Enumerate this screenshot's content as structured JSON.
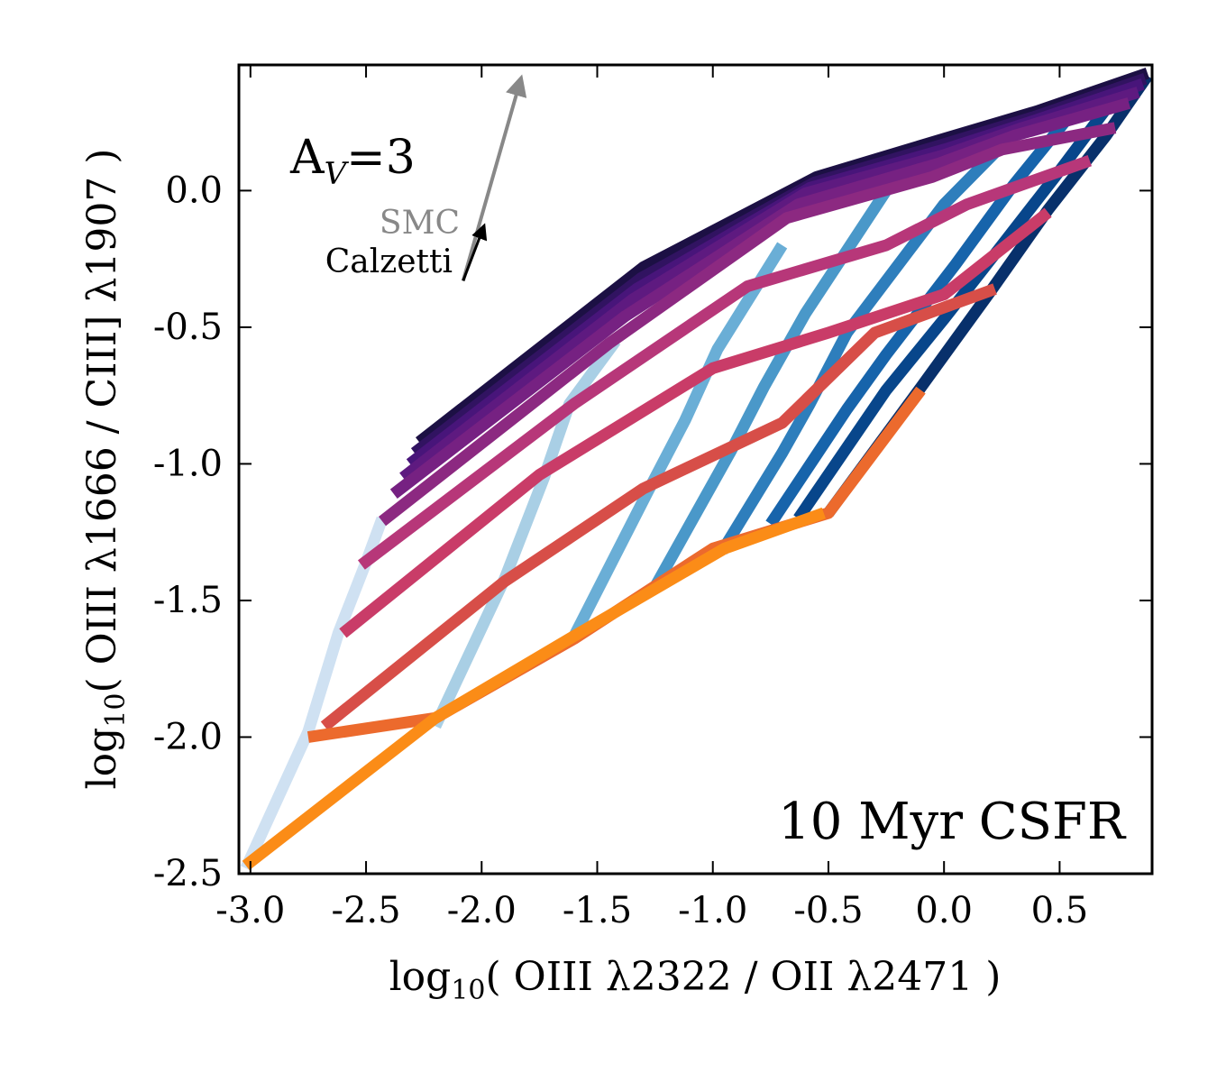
{
  "chart_data": {
    "type": "line",
    "title": "",
    "xlabel": {
      "prefix": "log",
      "sub": "10",
      "body": "( OIII λ2322 / OII λ2471 )"
    },
    "ylabel": {
      "prefix": "log",
      "sub": "10",
      "body": "( OIII λ1666 / CIII] λ1907 )"
    },
    "xlim": [
      -3.05,
      0.9
    ],
    "ylim": [
      -2.5,
      0.46
    ],
    "xticks": [
      -3.0,
      -2.5,
      -2.0,
      -1.5,
      -1.0,
      -0.5,
      0.0,
      0.5
    ],
    "yticks": [
      -2.5,
      -2.0,
      -1.5,
      -1.0,
      -0.5,
      0.0
    ],
    "xtick_labels": [
      "-3.0",
      "-2.5",
      "-2.0",
      "-1.5",
      "-1.0",
      "-0.5",
      "0.0",
      "0.5"
    ],
    "ytick_labels": [
      "-2.5",
      "-2.0",
      "-1.5",
      "-1.0",
      "-0.5",
      "0.0"
    ],
    "grid": false,
    "annotations": {
      "av_label": "A",
      "av_sub": "V",
      "av_value": "=3",
      "panel_label": "10 Myr CSFR",
      "smc_label": "SMC",
      "calzetti_label": "Calzetti"
    },
    "extinction_vectors": [
      {
        "name": "SMC",
        "color": "#888888",
        "x0": -2.08,
        "y0": -0.33,
        "x1": -1.83,
        "y1": 0.41
      },
      {
        "name": "Calzetti",
        "color": "#000000",
        "x0": -2.08,
        "y0": -0.33,
        "x1": -1.99,
        "y1": -0.13
      }
    ],
    "grid_series_blue": [
      {
        "name": "b1",
        "color": "#cfe1f2",
        "x": [
          -3.02,
          -2.75,
          -2.62,
          -2.5,
          -2.43
        ],
        "y": [
          -2.48,
          -1.98,
          -1.62,
          -1.36,
          -1.2
        ]
      },
      {
        "name": "b2",
        "color": "#a9cfe5",
        "x": [
          -2.2,
          -1.9,
          -1.73,
          -1.62,
          -1.42
        ],
        "y": [
          -1.96,
          -1.42,
          -1.05,
          -0.78,
          -0.55
        ]
      },
      {
        "name": "b3",
        "color": "#6aaed6",
        "x": [
          -1.6,
          -1.28,
          -1.12,
          -0.98,
          -0.7
        ],
        "y": [
          -1.63,
          -1.1,
          -0.84,
          -0.58,
          -0.2
        ]
      },
      {
        "name": "b4",
        "color": "#4a98c9",
        "x": [
          -1.25,
          -0.92,
          -0.78,
          -0.6,
          -0.25
        ],
        "y": [
          -1.45,
          -0.95,
          -0.72,
          -0.45,
          0.0
        ]
      },
      {
        "name": "b5",
        "color": "#2e7ebc",
        "x": [
          -0.96,
          -0.7,
          -0.58,
          -0.42,
          0.0,
          0.35
        ],
        "y": [
          -1.32,
          -0.96,
          -0.78,
          -0.52,
          -0.05,
          0.25
        ]
      },
      {
        "name": "b6",
        "color": "#1764ab",
        "x": [
          -0.75,
          -0.42,
          -0.25,
          0.05,
          0.3,
          0.55
        ],
        "y": [
          -1.22,
          -0.8,
          -0.6,
          -0.27,
          0.02,
          0.28
        ]
      },
      {
        "name": "b7",
        "color": "#08468b",
        "x": [
          -0.63,
          -0.25,
          0.0,
          0.25,
          0.48,
          0.72
        ],
        "y": [
          -1.2,
          -0.73,
          -0.47,
          -0.2,
          0.05,
          0.32
        ]
      },
      {
        "name": "b8",
        "color": "#08306b",
        "x": [
          -0.5,
          -0.1,
          0.2,
          0.45,
          0.7,
          0.88
        ],
        "y": [
          -1.18,
          -0.72,
          -0.37,
          -0.07,
          0.2,
          0.42
        ]
      }
    ],
    "series": [
      {
        "name": "s1",
        "color": "#1c1044",
        "x": [
          -2.27,
          -1.3,
          -0.55,
          0.0,
          0.4,
          0.88
        ],
        "y": [
          -0.92,
          -0.28,
          0.05,
          0.19,
          0.29,
          0.43
        ]
      },
      {
        "name": "s2",
        "color": "#311361",
        "x": [
          -2.29,
          -1.31,
          -0.56,
          0.0,
          0.39,
          0.87
        ],
        "y": [
          -0.96,
          -0.32,
          0.03,
          0.17,
          0.27,
          0.41
        ]
      },
      {
        "name": "s3",
        "color": "#48157a",
        "x": [
          -2.31,
          -1.33,
          -0.58,
          0.0,
          0.37,
          0.86
        ],
        "y": [
          -1.0,
          -0.36,
          0.01,
          0.15,
          0.25,
          0.39
        ]
      },
      {
        "name": "s4",
        "color": "#5e1a80",
        "x": [
          -2.34,
          -1.35,
          -0.6,
          0.0,
          0.34,
          0.84
        ],
        "y": [
          -1.05,
          -0.4,
          -0.01,
          0.13,
          0.23,
          0.36
        ]
      },
      {
        "name": "s5",
        "color": "#762182",
        "x": [
          -2.38,
          -1.38,
          -0.63,
          -0.02,
          0.3,
          0.8
        ],
        "y": [
          -1.11,
          -0.46,
          -0.05,
          0.1,
          0.2,
          0.32
        ]
      },
      {
        "name": "s6",
        "color": "#8c2981",
        "x": [
          -2.43,
          -1.45,
          -0.68,
          -0.05,
          0.25,
          0.74
        ],
        "y": [
          -1.21,
          -0.56,
          -0.1,
          0.05,
          0.15,
          0.23
        ]
      },
      {
        "name": "s7",
        "color": "#b73779",
        "x": [
          -2.52,
          -1.6,
          -0.85,
          -0.25,
          0.1,
          0.63
        ],
        "y": [
          -1.37,
          -0.78,
          -0.35,
          -0.2,
          -0.05,
          0.11
        ]
      },
      {
        "name": "s8",
        "color": "#c93c68",
        "x": [
          -2.6,
          -1.75,
          -1.0,
          -0.5,
          0.0,
          0.45
        ],
        "y": [
          -1.62,
          -1.04,
          -0.65,
          -0.52,
          -0.38,
          -0.08
        ]
      },
      {
        "name": "s9",
        "color": "#d74e48",
        "x": [
          -2.68,
          -1.9,
          -1.3,
          -0.7,
          -0.3,
          0.22
        ],
        "y": [
          -1.96,
          -1.43,
          -1.09,
          -0.85,
          -0.52,
          -0.36
        ]
      },
      {
        "name": "s10",
        "color": "#ec6a2d",
        "x": [
          -2.75,
          -2.2,
          -1.6,
          -1.0,
          -0.5,
          -0.1
        ],
        "y": [
          -2.0,
          -1.93,
          -1.64,
          -1.31,
          -1.18,
          -0.73
        ]
      },
      {
        "name": "s11",
        "color": "#fb8c17",
        "x": [
          -3.02,
          -2.2,
          -1.6,
          -0.95,
          -0.52
        ],
        "y": [
          -2.47,
          -1.93,
          -1.63,
          -1.31,
          -1.18
        ]
      }
    ]
  }
}
